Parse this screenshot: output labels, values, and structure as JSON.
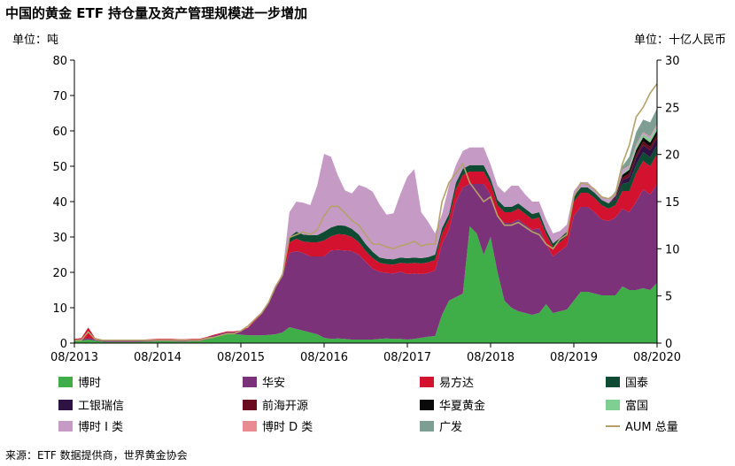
{
  "title": "中国的黄金 ETF 持仓量及资产管理规模进一步增加",
  "unit_left": "单位：吨",
  "unit_right": "单位：十亿人民币",
  "source": "来源：ETF 数据提供商，世界黄金协会",
  "chart_data": {
    "type": "area",
    "stacked": true,
    "x_ticks": [
      "08/2013",
      "08/2014",
      "08/2015",
      "08/2016",
      "08/2017",
      "08/2018",
      "08/2019",
      "08/2020"
    ],
    "x_range": [
      "2013-08",
      "2020-08"
    ],
    "ylim_left": [
      0,
      80
    ],
    "yticks_left": [
      0,
      10,
      20,
      30,
      40,
      50,
      60,
      70,
      80
    ],
    "ylim_right": [
      0,
      30
    ],
    "yticks_right": [
      0,
      5,
      10,
      15,
      20,
      25,
      30
    ],
    "grid": false,
    "legend_position": "bottom",
    "x": [
      "2013-08",
      "2013-09",
      "2013-10",
      "2013-11",
      "2013-12",
      "2014-01",
      "2014-02",
      "2014-03",
      "2014-04",
      "2014-05",
      "2014-06",
      "2014-07",
      "2014-08",
      "2014-09",
      "2014-10",
      "2014-11",
      "2014-12",
      "2015-01",
      "2015-02",
      "2015-03",
      "2015-04",
      "2015-05",
      "2015-06",
      "2015-07",
      "2015-08",
      "2015-09",
      "2015-10",
      "2015-11",
      "2015-12",
      "2016-01",
      "2016-02",
      "2016-03",
      "2016-04",
      "2016-05",
      "2016-06",
      "2016-07",
      "2016-08",
      "2016-09",
      "2016-10",
      "2016-11",
      "2016-12",
      "2017-01",
      "2017-02",
      "2017-03",
      "2017-04",
      "2017-05",
      "2017-06",
      "2017-07",
      "2017-08",
      "2017-09",
      "2017-10",
      "2017-11",
      "2017-12",
      "2018-01",
      "2018-02",
      "2018-03",
      "2018-04",
      "2018-05",
      "2018-06",
      "2018-07",
      "2018-08",
      "2018-09",
      "2018-10",
      "2018-11",
      "2018-12",
      "2019-01",
      "2019-02",
      "2019-03",
      "2019-04",
      "2019-05",
      "2019-06",
      "2019-07",
      "2019-08",
      "2019-09",
      "2019-10",
      "2019-11",
      "2019-12",
      "2020-01",
      "2020-02",
      "2020-03",
      "2020-04",
      "2020-05",
      "2020-06",
      "2020-07",
      "2020-08"
    ],
    "series": [
      {
        "name": "博时",
        "color": "#3fae49",
        "values": [
          0.6,
          0.7,
          1.0,
          0.7,
          0.4,
          0.3,
          0.3,
          0.3,
          0.3,
          0.3,
          0.4,
          0.4,
          0.5,
          0.5,
          0.5,
          0.4,
          0.4,
          0.5,
          0.5,
          1.0,
          1.5,
          2.0,
          2.5,
          2.5,
          2.4,
          2.2,
          2.2,
          2.2,
          2.3,
          2.5,
          3.0,
          4.5,
          4.0,
          3.5,
          3.0,
          2.5,
          1.5,
          1.2,
          1.3,
          1.2,
          1.0,
          1.0,
          1.0,
          1.0,
          1.2,
          1.3,
          1.2,
          1.2,
          1.0,
          1.2,
          1.5,
          1.8,
          2.0,
          8.0,
          12.0,
          13.0,
          14.0,
          33.0,
          31.0,
          25.0,
          30.0,
          20.0,
          12.0,
          10.0,
          9.0,
          8.5,
          8.0,
          8.5,
          11.0,
          8.5,
          9.0,
          9.5,
          12.0,
          14.5,
          14.5,
          14.0,
          13.5,
          13.5,
          13.5,
          16.0,
          15.0,
          15.0,
          15.5,
          15.0,
          17.0
        ]
      },
      {
        "name": "华安",
        "color": "#7b3279",
        "values": [
          0.4,
          0.4,
          0.4,
          0.4,
          0.4,
          0.4,
          0.4,
          0.4,
          0.4,
          0.4,
          0.4,
          0.5,
          0.5,
          0.5,
          0.5,
          0.5,
          0.5,
          0.5,
          0.5,
          0.5,
          0.6,
          0.6,
          0.6,
          0.6,
          1.0,
          2.0,
          4.0,
          6.0,
          9.0,
          13.0,
          16.0,
          21.0,
          22.0,
          22.0,
          21.5,
          22.0,
          23.0,
          25.0,
          25.0,
          25.0,
          25.0,
          24.0,
          22.0,
          20.0,
          19.0,
          18.5,
          18.5,
          19.0,
          18.5,
          18.5,
          18.0,
          18.0,
          18.5,
          20.0,
          20.0,
          27.0,
          30.0,
          12.0,
          14.0,
          20.0,
          12.0,
          16.0,
          22.0,
          24.0,
          26.0,
          25.0,
          24.0,
          24.0,
          17.0,
          16.0,
          17.0,
          18.0,
          24.0,
          24.0,
          24.0,
          23.0,
          21.5,
          21.0,
          22.0,
          22.0,
          22.0,
          25.0,
          28.0,
          27.0,
          28.0
        ]
      },
      {
        "name": "易方达",
        "color": "#d2122e",
        "values": [
          0.2,
          0.3,
          3.0,
          0.3,
          0.2,
          0.2,
          0.2,
          0.2,
          0.2,
          0.2,
          0.2,
          0.2,
          0.2,
          0.2,
          0.2,
          0.2,
          0.2,
          0.2,
          0.2,
          0.2,
          0.2,
          0.2,
          0.2,
          0.2,
          0.2,
          0.2,
          0.3,
          0.3,
          0.3,
          0.5,
          0.8,
          3.0,
          3.5,
          3.2,
          4.0,
          4.0,
          4.5,
          4.0,
          4.5,
          4.5,
          4.0,
          3.5,
          3.0,
          3.0,
          2.5,
          2.5,
          2.5,
          2.5,
          3.0,
          3.0,
          3.0,
          3.0,
          3.0,
          3.0,
          3.0,
          3.5,
          3.5,
          3.5,
          3.5,
          3.5,
          3.0,
          3.0,
          3.0,
          3.0,
          3.0,
          3.0,
          3.0,
          3.0,
          2.8,
          2.5,
          2.5,
          2.8,
          4.0,
          4.0,
          4.0,
          4.0,
          4.0,
          3.5,
          3.5,
          5.0,
          6.0,
          8.0,
          8.0,
          8.0,
          8.5
        ]
      },
      {
        "name": "国泰",
        "color": "#0f4a32",
        "values": [
          0,
          0,
          0,
          0,
          0,
          0,
          0,
          0,
          0,
          0,
          0,
          0,
          0,
          0,
          0,
          0,
          0,
          0,
          0,
          0,
          0,
          0,
          0,
          0,
          0,
          0,
          0,
          0,
          0,
          0,
          0,
          1.5,
          2.0,
          2.0,
          2.0,
          2.0,
          2.5,
          2.5,
          2.5,
          2.5,
          2.3,
          2.2,
          2.0,
          1.8,
          1.5,
          1.5,
          1.5,
          1.5,
          1.5,
          1.5,
          1.5,
          1.5,
          1.5,
          1.5,
          1.5,
          1.8,
          1.8,
          1.8,
          1.8,
          1.8,
          1.5,
          1.5,
          1.5,
          1.5,
          1.5,
          1.5,
          1.5,
          1.5,
          1.2,
          1.2,
          1.2,
          1.2,
          1.5,
          1.5,
          1.5,
          1.5,
          1.5,
          1.5,
          1.5,
          2.0,
          2.5,
          2.5,
          2.5,
          2.5,
          2.5
        ]
      },
      {
        "name": "工银瑞信",
        "color": "#2e1244",
        "values": [
          0,
          0,
          0,
          0,
          0,
          0,
          0,
          0,
          0,
          0,
          0,
          0,
          0,
          0,
          0,
          0,
          0,
          0,
          0,
          0,
          0,
          0,
          0,
          0,
          0,
          0,
          0,
          0,
          0,
          0,
          0,
          0,
          0,
          0,
          0,
          0,
          0,
          0,
          0,
          0,
          0,
          0,
          0,
          0,
          0,
          0,
          0,
          0,
          0,
          0,
          0,
          0,
          0,
          0,
          0,
          0,
          0,
          0,
          0,
          0,
          0,
          0,
          0,
          0,
          0,
          0,
          0,
          0,
          0,
          0,
          0,
          0,
          0,
          0,
          0,
          0,
          0,
          0,
          0.5,
          1.0,
          1.5,
          2.0,
          2.0,
          2.0,
          2.0
        ]
      },
      {
        "name": "前海开源",
        "color": "#6b0b1f",
        "values": [
          0,
          0,
          0,
          0,
          0,
          0,
          0,
          0,
          0,
          0,
          0,
          0,
          0,
          0,
          0,
          0,
          0,
          0,
          0,
          0,
          0,
          0,
          0,
          0,
          0,
          0,
          0,
          0,
          0,
          0,
          0,
          0,
          0,
          0,
          0,
          0,
          0,
          0,
          0,
          0,
          0,
          0,
          0,
          0,
          0,
          0,
          0,
          0,
          0,
          0,
          0,
          0,
          0,
          0,
          0,
          0,
          0,
          0,
          0,
          0,
          0,
          0,
          0,
          0,
          0,
          0,
          0,
          0,
          0,
          0,
          0,
          0,
          0,
          0,
          0,
          0,
          0,
          0,
          0.3,
          0.8,
          1.0,
          1.0,
          1.0,
          1.0,
          1.0
        ]
      },
      {
        "name": "华夏黄金",
        "color": "#0a0a0a",
        "values": [
          0,
          0,
          0,
          0,
          0,
          0,
          0,
          0,
          0,
          0,
          0,
          0,
          0,
          0,
          0,
          0,
          0,
          0,
          0,
          0,
          0,
          0,
          0,
          0,
          0,
          0,
          0,
          0,
          0,
          0,
          0,
          0,
          0,
          0,
          0,
          0,
          0,
          0,
          0,
          0,
          0,
          0,
          0,
          0,
          0,
          0,
          0,
          0,
          0,
          0,
          0,
          0,
          0,
          0,
          0,
          0,
          0,
          0,
          0,
          0,
          0,
          0,
          0,
          0,
          0,
          0,
          0,
          0,
          0,
          0,
          0,
          0,
          0,
          0,
          0,
          0,
          0,
          0,
          0.3,
          0.8,
          1.0,
          1.2,
          1.2,
          1.2,
          1.2
        ]
      },
      {
        "name": "富国",
        "color": "#7fcf93",
        "values": [
          0,
          0,
          0,
          0,
          0,
          0,
          0,
          0,
          0,
          0,
          0,
          0,
          0,
          0,
          0,
          0,
          0,
          0,
          0,
          0,
          0,
          0,
          0,
          0,
          0,
          0,
          0,
          0,
          0,
          0,
          0,
          0,
          0,
          0,
          0,
          0,
          0,
          0,
          0,
          0,
          0,
          0,
          0,
          0,
          0,
          0,
          0,
          0,
          0,
          0,
          0,
          0,
          0,
          0,
          0,
          0,
          0,
          0,
          0,
          0,
          0,
          0,
          0,
          0,
          0,
          0,
          0,
          0,
          0,
          0,
          0,
          0,
          0,
          0,
          0,
          0,
          0,
          0,
          0,
          0.3,
          0.5,
          0.8,
          0.8,
          1.0,
          1.0
        ]
      },
      {
        "name": "博时 I 类",
        "color": "#c59ac4",
        "values": [
          0,
          0,
          0,
          0,
          0,
          0,
          0,
          0,
          0,
          0,
          0,
          0,
          0,
          0,
          0,
          0,
          0,
          0,
          0,
          0,
          0,
          0,
          0,
          0,
          0,
          0,
          0,
          0,
          0,
          0,
          0,
          7.0,
          8.5,
          9.0,
          8.5,
          14.0,
          22.0,
          20.0,
          14.0,
          10.0,
          10.0,
          14.0,
          16.0,
          17.0,
          15.0,
          12.5,
          13.0,
          18.0,
          23.0,
          25.0,
          13.0,
          10.0,
          6.0,
          4.0,
          8.0,
          5.0,
          5.0,
          5.0,
          5.0,
          5.0,
          4.0,
          4.0,
          4.0,
          6.0,
          5.0,
          4.0,
          3.5,
          3.0,
          3.0,
          2.8,
          2.0,
          2.0,
          1.5,
          1.5,
          1.5,
          1.0,
          1.0,
          1.0,
          1.0,
          1.0,
          0.5,
          0.5,
          0.5,
          0.5,
          0.5
        ]
      },
      {
        "name": "博时 D 类",
        "color": "#e88a8f",
        "values": [
          0,
          0,
          0,
          0,
          0,
          0,
          0,
          0,
          0,
          0,
          0,
          0,
          0,
          0,
          0,
          0,
          0,
          0,
          0,
          0,
          0,
          0,
          0,
          0,
          0,
          0,
          0,
          0,
          0,
          0,
          0,
          0,
          0,
          0,
          0,
          0,
          0,
          0,
          0,
          0,
          0,
          0,
          0,
          0,
          0,
          0,
          0,
          0,
          0,
          0,
          0,
          0,
          0,
          0,
          0,
          0,
          0,
          0,
          0,
          0,
          0,
          0,
          0,
          0,
          0,
          0,
          0,
          0,
          0,
          0,
          0,
          0,
          0,
          0,
          0,
          0,
          0,
          0,
          0.1,
          0.1,
          0.2,
          0.2,
          0.2,
          0.2,
          0.2
        ]
      },
      {
        "name": "广发",
        "color": "#7e9d93",
        "values": [
          0,
          0,
          0,
          0,
          0,
          0,
          0,
          0,
          0,
          0,
          0,
          0,
          0,
          0,
          0,
          0,
          0,
          0,
          0,
          0,
          0,
          0,
          0,
          0,
          0,
          0,
          0,
          0,
          0,
          0,
          0,
          0,
          0,
          0,
          0,
          0,
          0,
          0,
          0,
          0,
          0,
          0,
          0,
          0,
          0,
          0,
          0,
          0,
          0,
          0,
          0,
          0,
          0,
          0,
          0,
          0,
          0,
          0,
          0,
          0,
          0,
          0,
          0,
          0,
          0,
          0,
          0,
          0,
          0,
          0,
          0,
          0,
          0,
          0,
          0,
          0,
          0,
          0,
          0.3,
          1.0,
          2.5,
          3.5,
          3.5,
          4.0,
          4.5
        ]
      }
    ],
    "line_series": {
      "name": "AUM 总量",
      "color": "#b5a16b",
      "axis": "right",
      "values": [
        0.3,
        0.3,
        1.2,
        0.4,
        0.3,
        0.3,
        0.3,
        0.3,
        0.3,
        0.3,
        0.3,
        0.3,
        0.3,
        0.3,
        0.3,
        0.3,
        0.3,
        0.3,
        0.3,
        0.5,
        0.6,
        0.8,
        1.0,
        1.0,
        1.3,
        1.8,
        2.5,
        3.2,
        4.3,
        6.0,
        7.2,
        11.2,
        11.5,
        11.8,
        11.5,
        12.0,
        13.5,
        14.5,
        14.5,
        13.8,
        13.0,
        12.5,
        11.5,
        10.5,
        10.5,
        10.2,
        10.0,
        10.3,
        10.5,
        10.8,
        10.3,
        10.5,
        10.5,
        15.0,
        17.0,
        18.0,
        19.0,
        17.0,
        16.0,
        15.0,
        15.5,
        13.5,
        12.5,
        12.5,
        12.8,
        12.3,
        11.8,
        11.5,
        10.5,
        10.0,
        11.0,
        11.5,
        15.5,
        17.0,
        16.8,
        16.3,
        15.5,
        15.3,
        15.8,
        19.0,
        21.0,
        24.0,
        25.0,
        26.5,
        27.5
      ]
    },
    "legend": [
      {
        "label": "博时",
        "kind": "box",
        "color": "#3fae49"
      },
      {
        "label": "华安",
        "kind": "box",
        "color": "#7b3279"
      },
      {
        "label": "易方达",
        "kind": "box",
        "color": "#d2122e"
      },
      {
        "label": "国泰",
        "kind": "box",
        "color": "#0f4a32"
      },
      {
        "label": "工银瑞信",
        "kind": "box",
        "color": "#2e1244"
      },
      {
        "label": "前海开源",
        "kind": "box",
        "color": "#6b0b1f"
      },
      {
        "label": "华夏黄金",
        "kind": "box",
        "color": "#0a0a0a"
      },
      {
        "label": "富国",
        "kind": "box",
        "color": "#7fcf93"
      },
      {
        "label": "博时 I 类",
        "kind": "box",
        "color": "#c59ac4"
      },
      {
        "label": "博时 D 类",
        "kind": "box",
        "color": "#e88a8f"
      },
      {
        "label": "广发",
        "kind": "box",
        "color": "#7e9d93"
      },
      {
        "label": "AUM 总量",
        "kind": "line",
        "color": "#b5a16b"
      }
    ]
  }
}
